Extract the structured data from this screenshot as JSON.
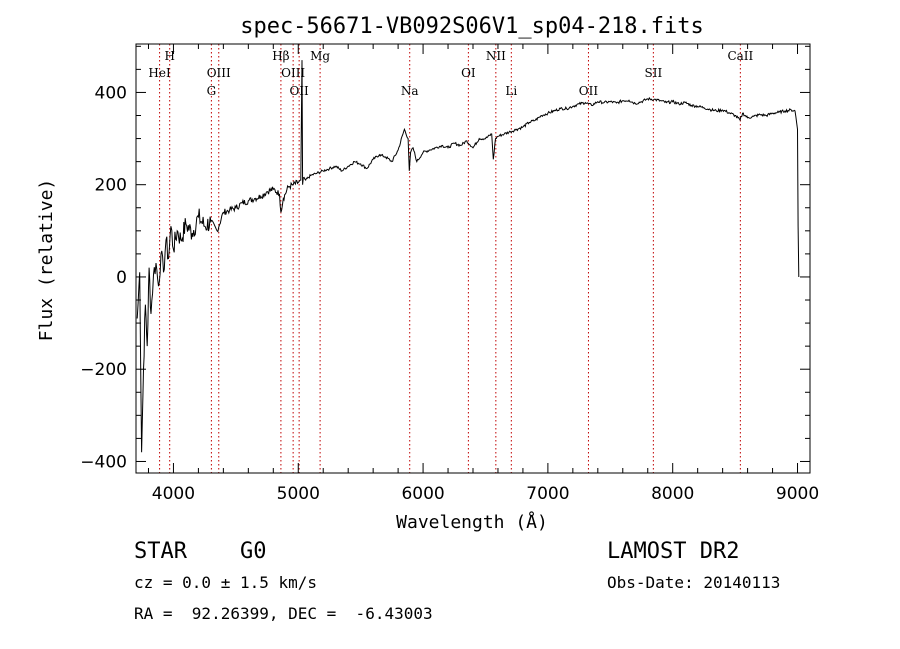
{
  "chart_data": {
    "type": "line",
    "title": "spec-56671-VB092S06V1_sp04-218.fits",
    "xlabel": "Wavelength (Å)",
    "ylabel": "Flux (relative)",
    "xlim": [
      3700,
      9100
    ],
    "ylim": [
      -425,
      505
    ],
    "x_ticks": [
      4000,
      5000,
      6000,
      7000,
      8000,
      9000
    ],
    "y_ticks": [
      -400,
      -200,
      0,
      200,
      400
    ],
    "x_tick_labels": [
      "4000",
      "5000",
      "6000",
      "7000",
      "8000",
      "9000"
    ],
    "y_tick_labels": [
      "−400",
      "−200",
      "0",
      "200",
      "400"
    ],
    "series": [
      {
        "x": [
          3710,
          3730,
          3745,
          3760,
          3775,
          3790,
          3805,
          3820,
          3840,
          3860,
          3880,
          3900,
          3920,
          3940,
          3960,
          3980,
          4000,
          4030,
          4060,
          4100,
          4150,
          4200,
          4250,
          4300,
          4350,
          4400,
          4450,
          4500,
          4550,
          4600,
          4650,
          4700,
          4750,
          4800,
          4850,
          4861,
          4880,
          4920,
          4960,
          5000,
          5020,
          5030,
          5035,
          5040,
          5060,
          5100,
          5150,
          5200,
          5250,
          5300,
          5350,
          5400,
          5450,
          5500,
          5550,
          5600,
          5650,
          5700,
          5750,
          5800,
          5850,
          5880,
          5890,
          5900,
          5920,
          5950,
          6000,
          6050,
          6100,
          6150,
          6200,
          6250,
          6300,
          6350,
          6400,
          6450,
          6500,
          6550,
          6563,
          6580,
          6600,
          6650,
          6700,
          6750,
          6800,
          6850,
          6900,
          6950,
          7000,
          7050,
          7100,
          7150,
          7200,
          7250,
          7300,
          7350,
          7400,
          7450,
          7500,
          7550,
          7600,
          7650,
          7700,
          7750,
          7800,
          7850,
          7900,
          7950,
          8000,
          8050,
          8100,
          8150,
          8200,
          8250,
          8300,
          8350,
          8400,
          8450,
          8500,
          8540,
          8560,
          8600,
          8650,
          8700,
          8750,
          8800,
          8850,
          8900,
          8950,
          8980,
          9000,
          9005,
          9010
        ],
        "y": [
          -90,
          10,
          -380,
          -200,
          -60,
          -150,
          20,
          -80,
          5,
          30,
          -20,
          50,
          10,
          80,
          40,
          110,
          60,
          100,
          80,
          115,
          95,
          130,
          110,
          120,
          100,
          140,
          145,
          150,
          160,
          165,
          170,
          175,
          185,
          190,
          180,
          140,
          170,
          195,
          200,
          205,
          210,
          470,
          200,
          215,
          210,
          220,
          225,
          230,
          235,
          240,
          230,
          240,
          250,
          245,
          235,
          255,
          265,
          260,
          250,
          275,
          320,
          300,
          230,
          270,
          280,
          250,
          270,
          275,
          280,
          285,
          280,
          290,
          285,
          295,
          280,
          300,
          300,
          310,
          255,
          300,
          305,
          310,
          315,
          320,
          325,
          335,
          340,
          350,
          355,
          360,
          365,
          365,
          370,
          375,
          378,
          372,
          380,
          378,
          380,
          377,
          382,
          383,
          376,
          380,
          386,
          385,
          382,
          378,
          380,
          375,
          378,
          372,
          370,
          367,
          363,
          360,
          362,
          356,
          350,
          340,
          355,
          345,
          348,
          352,
          350,
          355,
          357,
          360,
          362,
          360,
          320,
          110,
          0
        ]
      }
    ],
    "line_markers": [
      {
        "wavelength": 3889,
        "label": "HeI",
        "row": 1
      },
      {
        "wavelength": 3970,
        "label": "H",
        "row": 0
      },
      {
        "wavelength": 4304,
        "label": "G",
        "row": 2
      },
      {
        "wavelength": 4363,
        "label": "OIII",
        "row": 1
      },
      {
        "wavelength": 4861,
        "label": "Hβ",
        "row": 0
      },
      {
        "wavelength": 4959,
        "label": "OIII",
        "row": 1
      },
      {
        "wavelength": 5007,
        "label": "OII",
        "row": 2
      },
      {
        "wavelength": 5175,
        "label": "Mg",
        "row": 0
      },
      {
        "wavelength": 5893,
        "label": "Na",
        "row": 2
      },
      {
        "wavelength": 6363,
        "label": "OI",
        "row": 1
      },
      {
        "wavelength": 6583,
        "label": "NII",
        "row": 0
      },
      {
        "wavelength": 6707,
        "label": "Li",
        "row": 2
      },
      {
        "wavelength": 7325,
        "label": "OII",
        "row": 2
      },
      {
        "wavelength": 7845,
        "label": "SII",
        "row": 1
      },
      {
        "wavelength": 8542,
        "label": "CaII",
        "row": 0
      }
    ],
    "grid": false,
    "marker_color": "#c00000",
    "line_color": "#000000"
  },
  "info": {
    "star_class": "STAR    G0",
    "survey": "LAMOST DR2",
    "redshift": "cz = 0.0 ± 1.5 km/s",
    "obs_date": "Obs-Date: 20140113",
    "coords": "RA =  92.26399, DEC =  -6.43003"
  }
}
